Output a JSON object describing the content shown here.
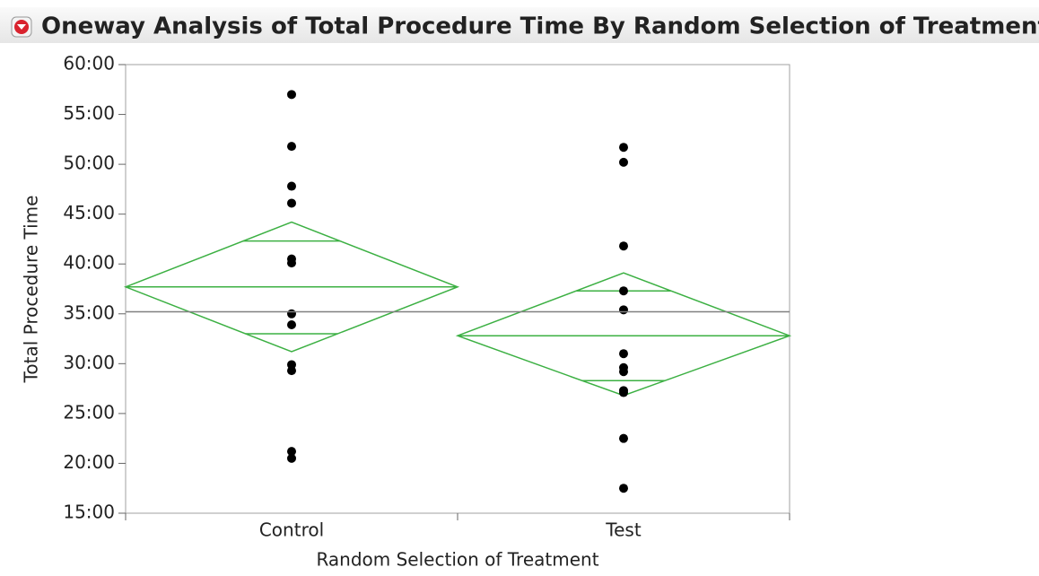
{
  "chart_data": {
    "type": "oneway",
    "title": "Oneway Analysis of Total Procedure Time By Random Selection of Treatment",
    "x_label": "Random Selection of Treatment",
    "y_label": "Total Procedure Time",
    "categories": [
      "Control",
      "Test"
    ],
    "points": [
      [
        57.0,
        51.8,
        47.8,
        46.1,
        40.5,
        40.1,
        35.0,
        33.9,
        29.9,
        29.3,
        21.2,
        20.5
      ],
      [
        51.7,
        50.2,
        41.8,
        37.3,
        35.4,
        31.0,
        29.6,
        29.2,
        27.3,
        27.1,
        22.5,
        17.5
      ]
    ],
    "point_color": "#000000",
    "diamonds": {
      "mean": [
        37.7,
        32.8
      ],
      "upper": [
        44.2,
        39.1
      ],
      "lower": [
        31.2,
        26.8
      ],
      "overlap_upper": [
        42.3,
        37.3
      ],
      "overlap_lower": [
        33.0,
        28.3
      ],
      "color": "#3cb043"
    },
    "grand_mean": 35.2,
    "grand_mean_color": "#808080",
    "ylim": [
      15,
      60
    ],
    "yticks": [
      {
        "value": 15,
        "label": "15:00"
      },
      {
        "value": 20,
        "label": "20:00"
      },
      {
        "value": 25,
        "label": "25:00"
      },
      {
        "value": 30,
        "label": "30:00"
      },
      {
        "value": 35,
        "label": "35:00"
      },
      {
        "value": 40,
        "label": "40:00"
      },
      {
        "value": 45,
        "label": "45:00"
      },
      {
        "value": 50,
        "label": "50:00"
      },
      {
        "value": 55,
        "label": "55:00"
      },
      {
        "value": 60,
        "label": "60:00"
      }
    ]
  }
}
